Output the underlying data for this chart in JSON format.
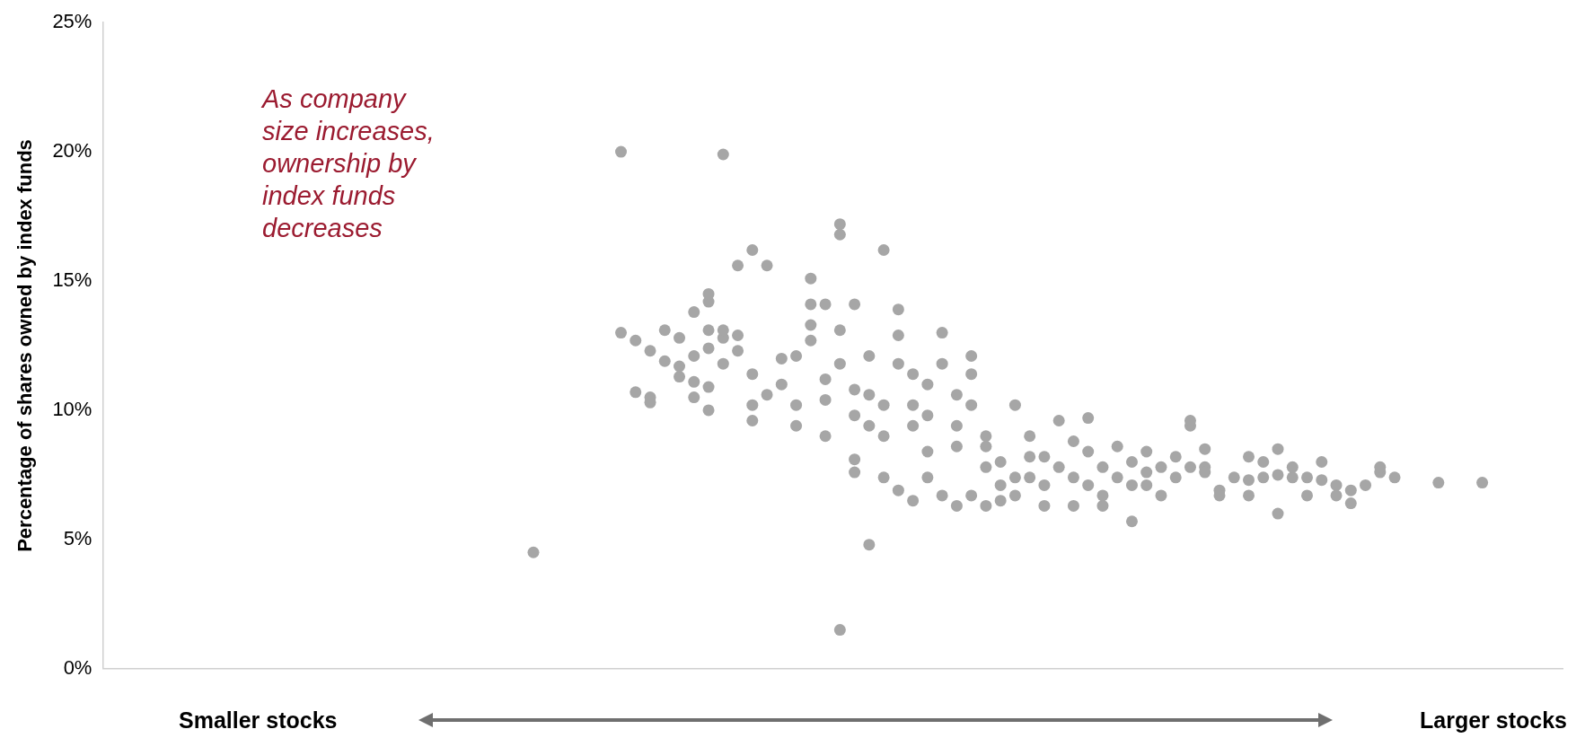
{
  "chart_data": {
    "type": "scatter",
    "ylabel": "Percentage of shares owned by index funds",
    "annotations": [
      "As company size increases, ownership by index funds decreases",
      "Smaller stocks",
      "Larger stocks"
    ],
    "marker": "circle",
    "tick_labels": "y",
    "ylim": [
      0,
      25
    ],
    "yticks": [
      {
        "value": 0,
        "label": "0%"
      },
      {
        "value": 5,
        "label": "5%"
      },
      {
        "value": 10,
        "label": "10%"
      },
      {
        "value": 15,
        "label": "15%"
      },
      {
        "value": 20,
        "label": "20%"
      },
      {
        "value": 25,
        "label": "25%"
      }
    ],
    "categories": [
      null,
      null,
      null,
      null,
      null,
      null,
      null,
      null,
      null,
      null,
      null,
      null,
      null,
      null,
      null,
      null,
      null,
      null,
      null,
      null,
      null,
      null,
      null,
      null,
      null,
      null,
      null,
      null,
      null,
      null,
      null,
      null,
      null,
      null,
      null,
      null,
      null,
      null,
      null,
      null,
      null,
      null,
      null,
      null,
      null,
      null,
      null,
      null,
      null,
      null,
      null,
      null,
      null,
      null,
      null,
      null,
      null,
      null,
      null,
      null,
      null,
      null,
      null,
      null,
      null,
      null,
      null,
      null,
      null,
      null,
      null,
      null,
      null,
      null,
      null,
      null,
      null,
      null,
      null,
      null,
      null,
      null,
      null,
      null,
      null,
      null,
      null,
      null,
      null,
      null,
      null,
      null,
      null,
      null,
      null,
      null,
      null,
      null,
      null,
      null
    ],
    "series": [
      {
        "color": "#a6a6a6",
        "values": [
          null,
          null,
          null,
          null,
          null,
          null,
          null,
          null,
          null,
          null,
          null,
          null,
          null,
          null,
          null,
          null,
          null,
          null,
          null,
          null,
          null,
          null,
          null,
          null,
          null,
          null,
          null,
          null,
          null,
          4.5,
          null,
          null,
          null,
          null,
          null,
          20.0,
          12.7,
          10.5,
          13.1,
          12.8,
          11.1,
          14.5,
          19.9,
          15.6,
          16.2,
          15.6,
          12.0,
          10.2,
          15.1,
          11.2,
          1.5,
          10.8,
          4.8,
          16.2,
          13.9,
          11.4,
          8.4,
          13.0,
          10.6,
          11.4,
          9.0,
          7.1,
          10.2,
          8.2,
          6.3,
          9.6,
          6.3,
          9.7,
          6.7,
          8.6,
          8.0,
          8.4,
          7.8,
          8.2,
          7.8,
          7.6,
          6.7,
          7.4,
          8.2,
          8.0,
          8.5,
          7.8,
          6.7,
          8.0,
          7.1,
          6.9,
          7.1,
          7.8,
          7.4,
          null,
          null,
          7.2,
          null,
          null,
          7.2,
          null,
          null,
          null,
          null,
          null
        ]
      },
      {
        "color": "#a6a6a6",
        "values": [
          null,
          null,
          null,
          null,
          null,
          null,
          null,
          null,
          null,
          null,
          null,
          null,
          null,
          null,
          null,
          null,
          null,
          null,
          null,
          null,
          null,
          null,
          null,
          null,
          null,
          null,
          null,
          null,
          null,
          null,
          null,
          null,
          null,
          null,
          null,
          13.0,
          10.7,
          10.3,
          11.9,
          11.7,
          13.8,
          14.2,
          13.1,
          12.9,
          11.4,
          10.6,
          11.0,
          9.4,
          14.1,
          10.4,
          17.2,
          9.8,
          9.4,
          10.2,
          12.9,
          10.2,
          11.0,
          11.8,
          9.4,
          10.2,
          7.8,
          8.0,
          7.4,
          9.0,
          8.2,
          7.8,
          8.8,
          7.1,
          7.8,
          7.4,
          7.1,
          7.6,
          6.7,
          7.4,
          9.6,
          8.5,
          6.9,
          null,
          7.3,
          7.4,
          7.5,
          7.4,
          7.4,
          7.3,
          6.7,
          6.4,
          null,
          7.6,
          null,
          null,
          null,
          null,
          null,
          null,
          null,
          null,
          null,
          null,
          null,
          null
        ]
      },
      {
        "color": "#a6a6a6",
        "values": [
          null,
          null,
          null,
          null,
          null,
          null,
          null,
          null,
          null,
          null,
          null,
          null,
          null,
          null,
          null,
          null,
          null,
          null,
          null,
          null,
          null,
          null,
          null,
          null,
          null,
          null,
          null,
          null,
          null,
          null,
          null,
          null,
          null,
          null,
          null,
          null,
          null,
          12.3,
          null,
          11.3,
          null,
          13.1,
          12.8,
          12.3,
          10.2,
          null,
          null,
          12.1,
          13.3,
          9.0,
          16.8,
          14.1,
          12.1,
          9.0,
          6.9,
          9.4,
          9.8,
          6.7,
          8.6,
          12.1,
          8.6,
          6.5,
          6.7,
          7.4,
          7.1,
          null,
          7.4,
          8.4,
          6.3,
          null,
          5.7,
          7.1,
          null,
          null,
          9.4,
          7.8,
          null,
          null,
          6.7,
          null,
          6.0,
          null,
          null,
          null,
          null,
          null,
          null,
          null,
          null,
          null,
          null,
          null,
          null,
          null,
          null,
          null,
          null,
          null,
          null,
          null
        ]
      },
      {
        "color": "#a6a6a6",
        "values": [
          null,
          null,
          null,
          null,
          null,
          null,
          null,
          null,
          null,
          null,
          null,
          null,
          null,
          null,
          null,
          null,
          null,
          null,
          null,
          null,
          null,
          null,
          null,
          null,
          null,
          null,
          null,
          null,
          null,
          null,
          null,
          null,
          null,
          null,
          null,
          null,
          null,
          null,
          null,
          null,
          12.1,
          12.4,
          11.8,
          null,
          9.6,
          null,
          null,
          null,
          12.7,
          14.1,
          13.1,
          7.6,
          10.6,
          null,
          11.8,
          6.5,
          7.4,
          null,
          6.3,
          6.7,
          6.3,
          null,
          null,
          null,
          null,
          null,
          null,
          null,
          null,
          null,
          null,
          null,
          null,
          null,
          null,
          null,
          null,
          null,
          null,
          null,
          null,
          null,
          null,
          null,
          null,
          null,
          null,
          null,
          null,
          null,
          null,
          null,
          null,
          null,
          null,
          null,
          null,
          null,
          null,
          null
        ]
      },
      {
        "color": "#a6a6a6",
        "values": [
          null,
          null,
          null,
          null,
          null,
          null,
          null,
          null,
          null,
          null,
          null,
          null,
          null,
          null,
          null,
          null,
          null,
          null,
          null,
          null,
          null,
          null,
          null,
          null,
          null,
          null,
          null,
          null,
          null,
          null,
          null,
          null,
          null,
          null,
          null,
          null,
          null,
          null,
          null,
          null,
          10.5,
          10.0,
          null,
          null,
          null,
          null,
          null,
          null,
          null,
          null,
          11.8,
          8.1,
          null,
          7.4,
          null,
          null,
          null,
          null,
          null,
          null,
          null,
          null,
          null,
          null,
          null,
          null,
          null,
          null,
          null,
          null,
          null,
          null,
          null,
          null,
          null,
          null,
          null,
          null,
          null,
          null,
          null,
          null,
          null,
          null,
          null,
          null,
          null,
          null,
          null,
          null,
          null,
          null,
          null,
          null,
          null,
          null,
          null,
          null,
          null,
          null
        ]
      },
      {
        "color": "#a6a6a6",
        "values": [
          null,
          null,
          null,
          null,
          null,
          null,
          null,
          null,
          null,
          null,
          null,
          null,
          null,
          null,
          null,
          null,
          null,
          null,
          null,
          null,
          null,
          null,
          null,
          null,
          null,
          null,
          null,
          null,
          null,
          null,
          null,
          null,
          null,
          null,
          null,
          null,
          null,
          null,
          null,
          null,
          null,
          10.9,
          null,
          null,
          null,
          null,
          null,
          null,
          null,
          null,
          null,
          null,
          null,
          null,
          null,
          null,
          null,
          null,
          null,
          null,
          null,
          null,
          null,
          null,
          null,
          null,
          null,
          null,
          null,
          null,
          null,
          null,
          null,
          null,
          null,
          null,
          null,
          null,
          null,
          null,
          null,
          null,
          null,
          null,
          null,
          null,
          null,
          null,
          null,
          null,
          null,
          null,
          null,
          null,
          null,
          null,
          null,
          null,
          null,
          null
        ]
      }
    ]
  }
}
